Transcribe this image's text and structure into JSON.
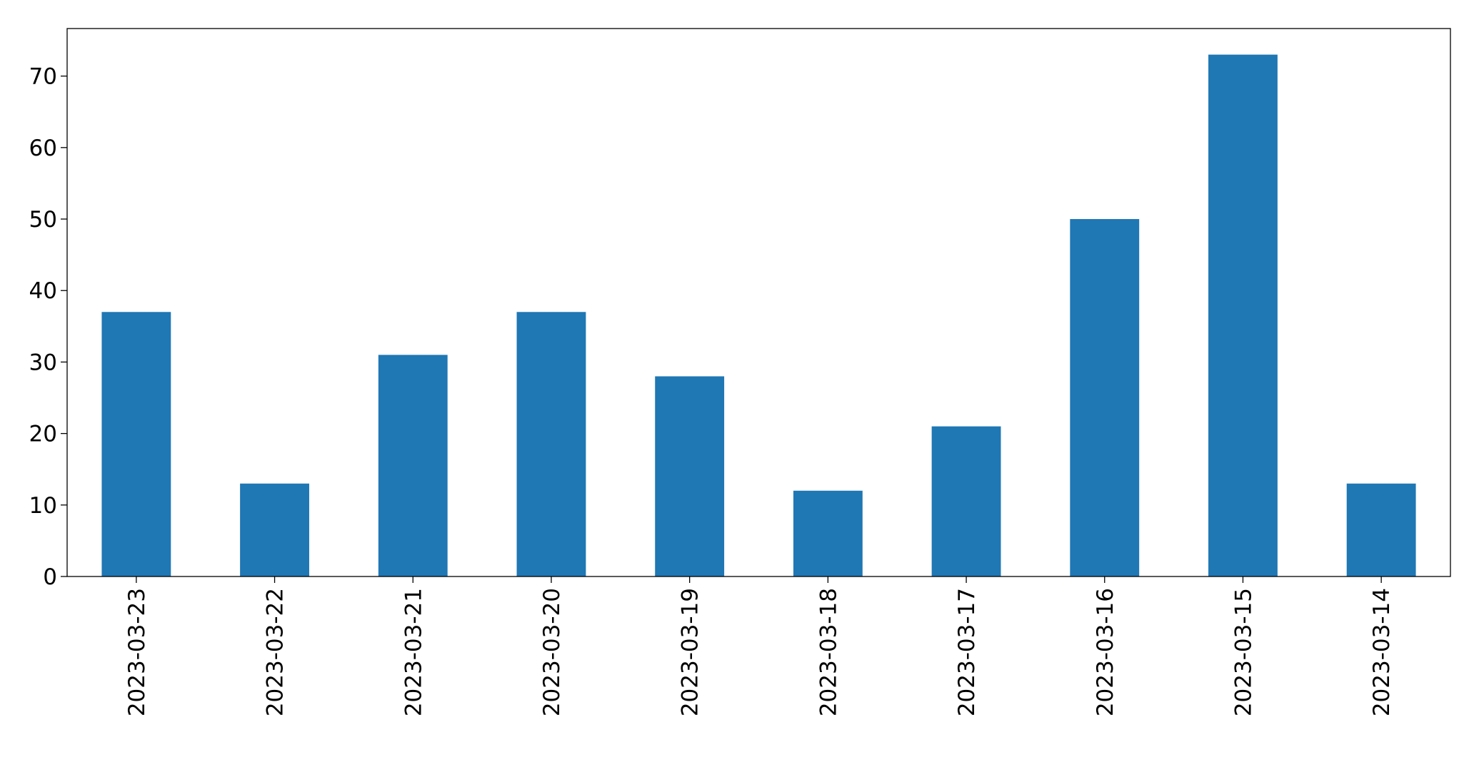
{
  "chart_data": {
    "type": "bar",
    "categories": [
      "2023-03-23",
      "2023-03-22",
      "2023-03-21",
      "2023-03-20",
      "2023-03-19",
      "2023-03-18",
      "2023-03-17",
      "2023-03-16",
      "2023-03-15",
      "2023-03-14"
    ],
    "values": [
      37,
      13,
      31,
      37,
      28,
      12,
      21,
      50,
      73,
      13
    ],
    "color": "#1f77b4",
    "ylim": [
      0,
      76.65
    ],
    "yticks": [
      0,
      10,
      20,
      30,
      40,
      50,
      60,
      70
    ],
    "grid": false
  }
}
